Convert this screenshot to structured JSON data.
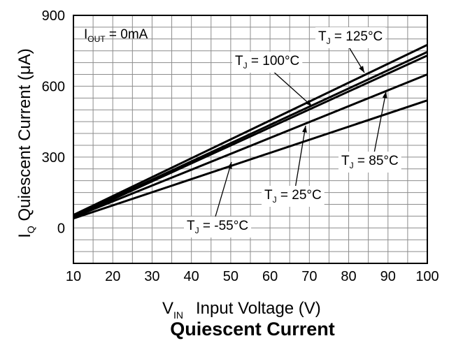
{
  "chart_data": {
    "type": "line",
    "title": "Quiescent Current",
    "xlabel": {
      "main": "V",
      "sub": "IN",
      "rest": "Input Voltage (V)"
    },
    "ylabel": {
      "main": "I",
      "sub": "Q",
      "rest": "Quiescent Current (μA)"
    },
    "xlim": [
      10,
      100
    ],
    "ylim": [
      -150,
      900
    ],
    "xticks": [
      "10",
      "20",
      "30",
      "40",
      "50",
      "60",
      "70",
      "80",
      "90",
      "100"
    ],
    "yticks": [
      "0",
      "300",
      "600",
      "900"
    ],
    "grid": true,
    "x": [
      10,
      100
    ],
    "series": [
      {
        "name": "T_J = 125°C",
        "values": [
          55,
          775
        ]
      },
      {
        "name": "T_J = 100°C",
        "values": [
          50,
          745
        ]
      },
      {
        "name": "T_J = 85°C",
        "values": [
          45,
          650
        ]
      },
      {
        "name": "T_J = 25°C",
        "values": [
          45,
          730
        ]
      },
      {
        "name": "T_J = -55°C",
        "values": [
          40,
          540
        ]
      }
    ],
    "annotations": [
      {
        "id": "iout",
        "parts": [
          "I",
          "OUT",
          " = 0mA"
        ]
      },
      {
        "id": "t125",
        "parts": [
          "T",
          "J",
          " = 125°C"
        ]
      },
      {
        "id": "t100",
        "parts": [
          "T",
          "J",
          " = 100°C"
        ]
      },
      {
        "id": "t85",
        "parts": [
          "T",
          "J",
          " = 85°C"
        ]
      },
      {
        "id": "t25",
        "parts": [
          "T",
          "J",
          " = 25°C"
        ]
      },
      {
        "id": "tm55",
        "parts": [
          "T",
          "J",
          " = -55°C"
        ]
      }
    ]
  }
}
